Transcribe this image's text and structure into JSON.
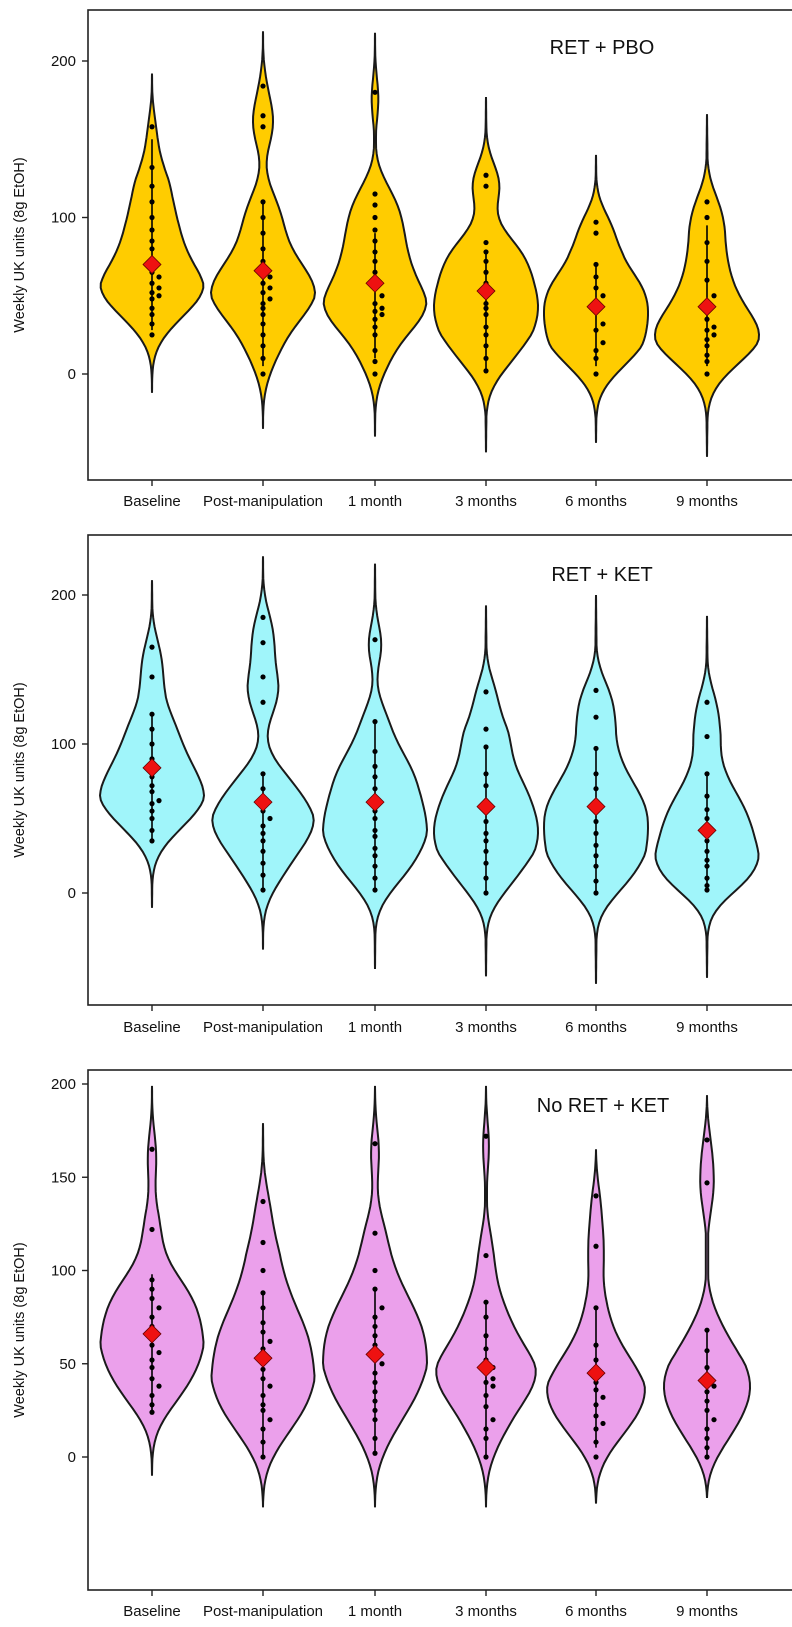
{
  "colors": {
    "panel1": "#FFCC00",
    "panel2": "#A0F5FA",
    "panel3": "#EBA0EB",
    "mean": "#EE1111",
    "points": "#000000"
  },
  "chart_data": [
    {
      "type": "violin",
      "title": "RET + PBO",
      "ylabel": "Weekly UK units (8g EtOH)",
      "categories": [
        "Baseline",
        "Post-manipulation",
        "1 month",
        "3 months",
        "6 months",
        "9 months"
      ],
      "yticks": [
        0,
        100,
        200
      ],
      "ylim": [
        -70,
        230
      ],
      "grid": false,
      "fill": "#FFCC00",
      "means": [
        70,
        66,
        58,
        53,
        43,
        43
      ],
      "whiskers": [
        [
          28,
          150
        ],
        [
          5,
          110
        ],
        [
          10,
          90
        ],
        [
          3,
          78
        ],
        [
          5,
          70
        ],
        [
          5,
          95
        ]
      ],
      "violin_extent": [
        [
          -12,
          192
        ],
        [
          -35,
          219
        ],
        [
          -40,
          218
        ],
        [
          -50,
          177
        ],
        [
          -44,
          140
        ],
        [
          -53,
          166
        ]
      ],
      "points": [
        [
          25,
          32,
          38,
          42,
          48,
          50,
          52,
          55,
          58,
          62,
          65,
          72,
          80,
          85,
          92,
          100,
          110,
          120,
          132,
          158
        ],
        [
          0,
          10,
          18,
          25,
          32,
          38,
          42,
          45,
          48,
          52,
          55,
          58,
          62,
          66,
          72,
          80,
          90,
          100,
          110,
          158,
          165,
          184
        ],
        [
          0,
          8,
          15,
          25,
          30,
          35,
          38,
          40,
          42,
          45,
          50,
          55,
          60,
          65,
          72,
          78,
          85,
          92,
          100,
          108,
          115,
          180
        ],
        [
          2,
          10,
          18,
          25,
          30,
          38,
          42,
          45,
          52,
          58,
          65,
          72,
          78,
          84,
          120,
          127
        ],
        [
          0,
          10,
          15,
          20,
          28,
          32,
          40,
          45,
          50,
          55,
          62,
          70,
          90,
          97
        ],
        [
          0,
          8,
          12,
          18,
          22,
          25,
          28,
          30,
          35,
          45,
          50,
          60,
          72,
          84,
          100,
          110
        ]
      ]
    },
    {
      "type": "violin",
      "title": "RET + KET",
      "ylabel": "Weekly UK units (8g EtOH)",
      "categories": [
        "Baseline",
        "Post-manipulation",
        "1 month",
        "3 months",
        "6 months",
        "9 months"
      ],
      "yticks": [
        0,
        100,
        200
      ],
      "ylim": [
        -72,
        240
      ],
      "grid": false,
      "fill": "#A0F5FA",
      "means": [
        84,
        61,
        61,
        58,
        58,
        42
      ],
      "whiskers": [
        [
          35,
          120
        ],
        [
          2,
          80
        ],
        [
          2,
          115
        ],
        [
          0,
          97
        ],
        [
          0,
          97
        ],
        [
          2,
          80
        ]
      ],
      "violin_extent": [
        [
          -10,
          210
        ],
        [
          -38,
          226
        ],
        [
          -51,
          221
        ],
        [
          -56,
          193
        ],
        [
          -61,
          200
        ],
        [
          -57,
          186
        ]
      ],
      "points": [
        [
          35,
          42,
          50,
          55,
          60,
          62,
          68,
          72,
          78,
          85,
          90,
          100,
          110,
          120,
          145,
          165
        ],
        [
          2,
          12,
          20,
          28,
          35,
          40,
          45,
          50,
          55,
          62,
          70,
          80,
          128,
          145,
          168,
          185
        ],
        [
          2,
          10,
          18,
          25,
          30,
          38,
          42,
          50,
          55,
          62,
          70,
          78,
          85,
          95,
          115,
          170
        ],
        [
          0,
          10,
          20,
          28,
          35,
          40,
          48,
          55,
          62,
          72,
          80,
          98,
          110,
          135
        ],
        [
          0,
          8,
          18,
          25,
          32,
          40,
          48,
          55,
          60,
          70,
          80,
          97,
          118,
          136
        ],
        [
          2,
          5,
          10,
          18,
          22,
          28,
          35,
          42,
          50,
          56,
          65,
          80,
          105,
          128
        ]
      ]
    },
    {
      "type": "violin",
      "title": "No RET + KET",
      "ylabel": "Weekly UK units (8g EtOH)",
      "categories": [
        "Baseline",
        "Post-manipulation",
        "1 month",
        "3 months",
        "6 months",
        "9 months"
      ],
      "yticks": [
        0,
        50,
        100,
        150,
        200
      ],
      "ylim": [
        -38,
        208
      ],
      "grid": false,
      "fill": "#EBA0EB",
      "means": [
        66,
        53,
        55,
        48,
        45,
        41
      ],
      "whiskers": [
        [
          24,
          98
        ],
        [
          0,
          88
        ],
        [
          2,
          90
        ],
        [
          0,
          83
        ],
        [
          5,
          80
        ],
        [
          0,
          68
        ]
      ],
      "violin_extent": [
        [
          -10,
          199
        ],
        [
          -27,
          179
        ],
        [
          -27,
          199
        ],
        [
          -27,
          199
        ],
        [
          -25,
          165
        ],
        [
          -22,
          194
        ]
      ],
      "points": [
        [
          24,
          28,
          33,
          38,
          42,
          48,
          52,
          56,
          60,
          65,
          70,
          75,
          80,
          85,
          90,
          95,
          122,
          165
        ],
        [
          0,
          8,
          15,
          20,
          25,
          28,
          33,
          38,
          42,
          47,
          53,
          58,
          62,
          67,
          72,
          80,
          88,
          100,
          115,
          137
        ],
        [
          2,
          10,
          20,
          25,
          30,
          35,
          40,
          45,
          50,
          55,
          60,
          65,
          70,
          75,
          80,
          90,
          100,
          120,
          168
        ],
        [
          0,
          10,
          15,
          20,
          27,
          33,
          38,
          40,
          42,
          45,
          48,
          52,
          58,
          65,
          75,
          83,
          108,
          172
        ],
        [
          0,
          8,
          15,
          18,
          22,
          28,
          32,
          36,
          40,
          45,
          52,
          60,
          80,
          113,
          140
        ],
        [
          0,
          5,
          10,
          15,
          20,
          25,
          30,
          35,
          38,
          42,
          48,
          57,
          68,
          147,
          170
        ]
      ]
    }
  ]
}
